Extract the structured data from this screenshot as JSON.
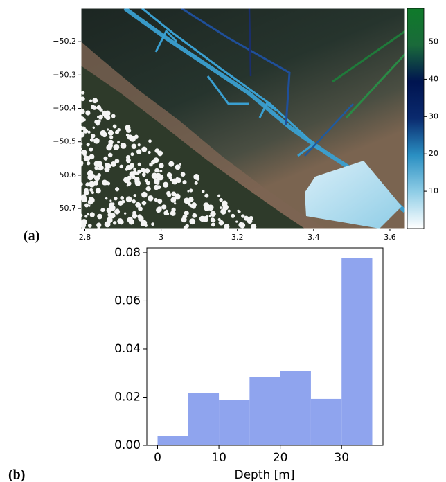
{
  "chart_data": [
    {
      "type": "map",
      "panel_label": "(a)",
      "xlim": [
        2.79,
        3.64
      ],
      "ylim": [
        -50.76,
        -50.1
      ],
      "xticks": [
        2.8,
        3.0,
        3.2,
        3.4,
        3.6
      ],
      "yticks": [
        {
          "value": -50.2,
          "label": "−50.2"
        },
        {
          "value": -50.3,
          "label": "−50.3"
        },
        {
          "value": -50.4,
          "label": "−50.4"
        },
        {
          "value": -50.5,
          "label": "−50.5"
        },
        {
          "value": -50.6,
          "label": "−50.6"
        },
        {
          "value": -50.7,
          "label": "−50.7"
        }
      ],
      "colorbar": {
        "lim": [
          0,
          59
        ],
        "ticks": [
          10,
          20,
          30,
          40,
          50
        ],
        "colors": [
          "#ffffff",
          "#8fcde6",
          "#2a8fc2",
          "#0a2a6e",
          "#001450",
          "#1a6a3a",
          "#0f7a2a"
        ]
      }
    },
    {
      "type": "histogram",
      "panel_label": "(b)",
      "xlabel": "Depth [m]",
      "bins": [
        0,
        5,
        10,
        15,
        20,
        25,
        30,
        35
      ],
      "values": [
        0.004,
        0.0218,
        0.0187,
        0.0284,
        0.031,
        0.0193,
        0.0779
      ],
      "color": "#8fa4ee",
      "xlim": [
        -1.75,
        36.75
      ],
      "ylim": [
        0,
        0.082
      ],
      "xticks": [
        0,
        10,
        20,
        30
      ],
      "yticks": [
        {
          "value": 0,
          "label": "0.00"
        },
        {
          "value": 0.02,
          "label": "0.02"
        },
        {
          "value": 0.04,
          "label": "0.04"
        },
        {
          "value": 0.06,
          "label": "0.06"
        },
        {
          "value": 0.08,
          "label": "0.08"
        }
      ]
    }
  ]
}
